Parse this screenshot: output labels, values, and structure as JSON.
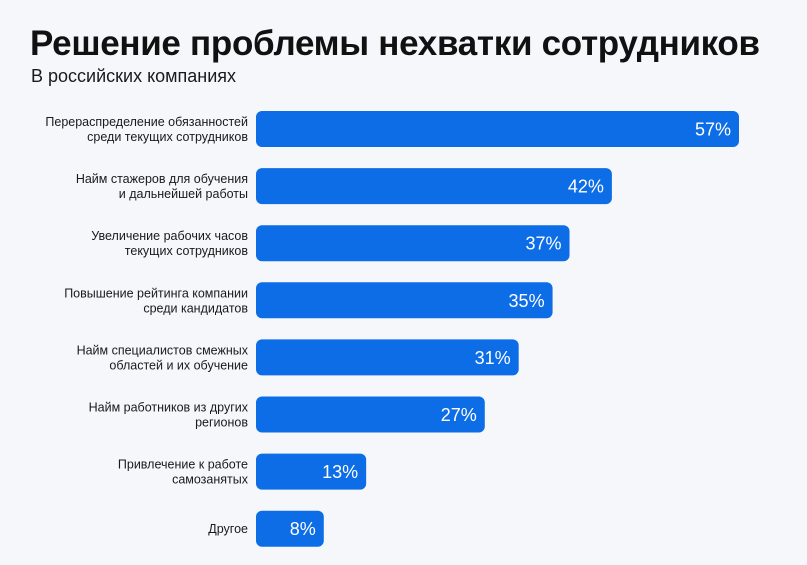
{
  "title": "Решение проблемы нехватки сотрудников",
  "subtitle": "В российских компаниях",
  "colors": {
    "bar": "#0d6de6",
    "background": "#f6f7fb",
    "text": "#111111",
    "value_text": "#ffffff"
  },
  "chart_data": {
    "type": "bar",
    "orientation": "horizontal",
    "title": "Решение проблемы нехватки сотрудников",
    "subtitle": "В российских компаниях",
    "unit": "%",
    "categories": [
      [
        "Перераспределение обязанностей",
        "среди текущих сотрудников"
      ],
      [
        "Найм стажеров для обучения",
        "и дальнейшей работы"
      ],
      [
        "Увеличение рабочих часов",
        "текущих сотрудников"
      ],
      [
        "Повышение рейтинга компании",
        "среди кандидатов"
      ],
      [
        "Найм специалистов смежных",
        "областей и их обучение"
      ],
      [
        "Найм работников из других",
        "регионов"
      ],
      [
        "Привлечение к работе",
        "самозанятых"
      ],
      [
        "Другое"
      ]
    ],
    "values": [
      57,
      42,
      37,
      35,
      31,
      27,
      13,
      8
    ],
    "value_labels": [
      "57%",
      "42%",
      "37%",
      "35%",
      "31%",
      "27%",
      "13%",
      "8%"
    ],
    "xlim": [
      0,
      57
    ],
    "grid": false,
    "legend": "none"
  }
}
